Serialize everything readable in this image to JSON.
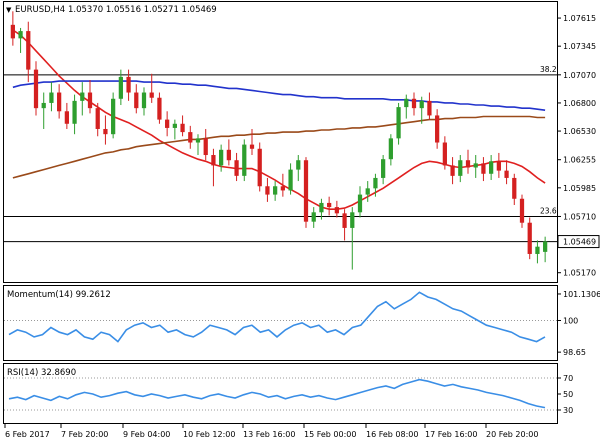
{
  "header": {
    "symbol_timeframe": "EURUSD,H4",
    "ohlc": "1.05370 1.05516 1.05271 1.05469"
  },
  "price_axis": {
    "labels": [
      "1.07615",
      "1.07345",
      "1.07070",
      "1.06800",
      "1.06530",
      "1.06255",
      "1.05985",
      "1.05710",
      "1.05469",
      "1.05170"
    ]
  },
  "fib_levels": [
    {
      "label": "38.2",
      "value": 1.0707
    },
    {
      "label": "23.6",
      "value": 1.0571
    }
  ],
  "current_price": {
    "label": "1.05469",
    "value": 1.05469
  },
  "momentum": {
    "title": "Momentum(14) 99.2612",
    "axis_labels": [
      "101.1306",
      "100",
      "98.65"
    ]
  },
  "rsi": {
    "title": "RSI(14) 32.8690",
    "axis_labels": [
      "70",
      "50",
      "30"
    ]
  },
  "time_axis": {
    "labels": [
      "6 Feb 2017",
      "7 Feb 20:00",
      "9 Feb 04:00",
      "10 Feb 12:00",
      "13 Feb 16:00",
      "15 Feb 00:00",
      "16 Feb 08:00",
      "17 Feb 16:00",
      "20 Feb 20:00"
    ]
  },
  "colors": {
    "bull": "#2e9e2e",
    "bear": "#d42020",
    "sma_fast": "#e02020",
    "sma_slow": "#2233cc",
    "sma_mid": "#9a4a1a",
    "oscillator": "#3a8ee6",
    "level_line": "#000000",
    "dotted": "#999999"
  },
  "chart_data": {
    "type": "candlestick",
    "symbol": "EURUSD",
    "timeframe": "H4",
    "ohlc_last": {
      "open": 1.0537,
      "high": 1.05516,
      "low": 1.05271,
      "close": 1.05469
    },
    "ylim": [
      1.051,
      1.0775
    ],
    "candles": [
      [
        1.0755,
        1.0768,
        1.0735,
        1.0742
      ],
      [
        1.0742,
        1.0752,
        1.0728,
        1.0749
      ],
      [
        1.0749,
        1.0758,
        1.07,
        1.0712
      ],
      [
        1.0712,
        1.072,
        1.0668,
        1.0675
      ],
      [
        1.0675,
        1.069,
        1.0655,
        1.068
      ],
      [
        1.068,
        1.07,
        1.0672,
        1.069
      ],
      [
        1.069,
        1.0698,
        1.0665,
        1.0672
      ],
      [
        1.0672,
        1.068,
        1.0655,
        1.066
      ],
      [
        1.066,
        1.0688,
        1.065,
        1.0682
      ],
      [
        1.0682,
        1.07,
        1.0668,
        1.069
      ],
      [
        1.069,
        1.0702,
        1.067,
        1.0675
      ],
      [
        1.0675,
        1.068,
        1.0648,
        1.0655
      ],
      [
        1.0655,
        1.0668,
        1.064,
        1.065
      ],
      [
        1.065,
        1.069,
        1.0646,
        1.0684
      ],
      [
        1.0684,
        1.0712,
        1.0678,
        1.0705
      ],
      [
        1.0705,
        1.0712,
        1.0682,
        1.069
      ],
      [
        1.069,
        1.0698,
        1.067,
        1.0675
      ],
      [
        1.0675,
        1.0695,
        1.0668,
        1.069
      ],
      [
        1.069,
        1.0708,
        1.068,
        1.0685
      ],
      [
        1.0685,
        1.069,
        1.066,
        1.0664
      ],
      [
        1.0664,
        1.0672,
        1.0648,
        1.0656
      ],
      [
        1.0656,
        1.0664,
        1.0645,
        1.066
      ],
      [
        1.066,
        1.0668,
        1.0648,
        1.0652
      ],
      [
        1.0652,
        1.0658,
        1.0636,
        1.0642
      ],
      [
        1.0642,
        1.065,
        1.063,
        1.0646
      ],
      [
        1.0646,
        1.0655,
        1.0625,
        1.063
      ],
      [
        1.063,
        1.0636,
        1.06,
        1.062
      ],
      [
        1.062,
        1.064,
        1.0614,
        1.0635
      ],
      [
        1.0635,
        1.0645,
        1.062,
        1.0625
      ],
      [
        1.0625,
        1.0632,
        1.0605,
        1.061
      ],
      [
        1.061,
        1.0645,
        1.0605,
        1.064
      ],
      [
        1.064,
        1.0655,
        1.063,
        1.0636
      ],
      [
        1.0636,
        1.0642,
        1.0595,
        1.06
      ],
      [
        1.06,
        1.0608,
        1.0585,
        1.0592
      ],
      [
        1.0592,
        1.0605,
        1.0586,
        1.06
      ],
      [
        1.06,
        1.0612,
        1.059,
        1.0596
      ],
      [
        1.0596,
        1.0622,
        1.0592,
        1.0616
      ],
      [
        1.0616,
        1.063,
        1.0605,
        1.0625
      ],
      [
        1.0625,
        1.0628,
        1.056,
        1.0566
      ],
      [
        1.0566,
        1.058,
        1.056,
        1.0575
      ],
      [
        1.0575,
        1.0588,
        1.0568,
        1.0584
      ],
      [
        1.0584,
        1.059,
        1.0572,
        1.058
      ],
      [
        1.058,
        1.0586,
        1.057,
        1.0574
      ],
      [
        1.0574,
        1.0578,
        1.0548,
        1.056
      ],
      [
        1.056,
        1.058,
        1.052,
        1.0575
      ],
      [
        1.0575,
        1.06,
        1.057,
        1.0592
      ],
      [
        1.0592,
        1.0605,
        1.0585,
        1.0598
      ],
      [
        1.0598,
        1.0612,
        1.059,
        1.0608
      ],
      [
        1.0608,
        1.063,
        1.0602,
        1.0626
      ],
      [
        1.0626,
        1.065,
        1.062,
        1.0646
      ],
      [
        1.0646,
        1.068,
        1.064,
        1.0676
      ],
      [
        1.0676,
        1.0688,
        1.0665,
        1.0684
      ],
      [
        1.0684,
        1.069,
        1.0668,
        1.0675
      ],
      [
        1.0675,
        1.0686,
        1.066,
        1.0682
      ],
      [
        1.0682,
        1.069,
        1.0664,
        1.0668
      ],
      [
        1.0668,
        1.0674,
        1.0636,
        1.0642
      ],
      [
        1.0642,
        1.0648,
        1.0616,
        1.062
      ],
      [
        1.062,
        1.0628,
        1.0602,
        1.061
      ],
      [
        1.061,
        1.063,
        1.0604,
        1.0625
      ],
      [
        1.0625,
        1.0635,
        1.0612,
        1.0618
      ],
      [
        1.0618,
        1.063,
        1.0608,
        1.0622
      ],
      [
        1.0622,
        1.0628,
        1.0605,
        1.0612
      ],
      [
        1.0612,
        1.063,
        1.0606,
        1.0624
      ],
      [
        1.0624,
        1.0632,
        1.0608,
        1.0615
      ],
      [
        1.0615,
        1.0625,
        1.0602,
        1.0608
      ],
      [
        1.0608,
        1.0612,
        1.0582,
        1.0588
      ],
      [
        1.0588,
        1.0592,
        1.056,
        1.0565
      ],
      [
        1.0565,
        1.057,
        1.053,
        1.0535
      ],
      [
        1.0535,
        1.0548,
        1.0526,
        1.0542
      ],
      [
        1.0537,
        1.05516,
        1.05271,
        1.05469
      ]
    ],
    "series": [
      {
        "name": "sma_fast",
        "values": [
          1.075,
          1.0745,
          1.0738,
          1.073,
          1.0722,
          1.0714,
          1.0706,
          1.0699,
          1.0692,
          1.0686,
          1.0681,
          1.0676,
          1.0671,
          1.0667,
          1.0664,
          1.0661,
          1.0657,
          1.0653,
          1.0649,
          1.0644,
          1.064,
          1.0636,
          1.0632,
          1.0629,
          1.0626,
          1.0624,
          1.0621,
          1.0619,
          1.0618,
          1.0617,
          1.0617,
          1.0617,
          1.0614,
          1.061,
          1.0606,
          1.0601,
          1.0597,
          1.0593,
          1.0588,
          1.0584,
          1.058,
          1.0578,
          1.0578,
          1.0579,
          1.0582,
          1.0586,
          1.059,
          1.0594,
          1.0598,
          1.0603,
          1.0608,
          1.0613,
          1.0618,
          1.0622,
          1.0624,
          1.0623,
          1.0621,
          1.0619,
          1.0618,
          1.0619,
          1.062,
          1.0621,
          1.0623,
          1.0624,
          1.0624,
          1.0622,
          1.0619,
          1.0614,
          1.0608,
          1.0603
        ]
      },
      {
        "name": "sma_slow",
        "values": [
          1.0695,
          1.0697,
          1.0698,
          1.0699,
          1.07,
          1.07,
          1.0701,
          1.0701,
          1.0701,
          1.0701,
          1.0701,
          1.0701,
          1.0701,
          1.0701,
          1.0701,
          1.0701,
          1.0701,
          1.07,
          1.07,
          1.07,
          1.0699,
          1.0699,
          1.0698,
          1.0698,
          1.0697,
          1.0697,
          1.0696,
          1.0695,
          1.0694,
          1.0694,
          1.0693,
          1.0692,
          1.0691,
          1.069,
          1.0689,
          1.0688,
          1.0688,
          1.0687,
          1.0686,
          1.0686,
          1.0685,
          1.0685,
          1.0685,
          1.0684,
          1.0684,
          1.0684,
          1.0684,
          1.0684,
          1.0684,
          1.0683,
          1.0683,
          1.0683,
          1.0682,
          1.0682,
          1.0681,
          1.0681,
          1.068,
          1.068,
          1.0679,
          1.0679,
          1.0678,
          1.0678,
          1.0677,
          1.0677,
          1.0676,
          1.0676,
          1.0675,
          1.0675,
          1.0674,
          1.0673
        ]
      },
      {
        "name": "sma_mid",
        "values": [
          1.0608,
          1.061,
          1.0612,
          1.0614,
          1.0616,
          1.0618,
          1.062,
          1.0622,
          1.0624,
          1.0626,
          1.0628,
          1.063,
          1.0632,
          1.0633,
          1.0635,
          1.0636,
          1.0638,
          1.0639,
          1.064,
          1.0641,
          1.0642,
          1.0643,
          1.0644,
          1.0645,
          1.0645,
          1.0646,
          1.0647,
          1.0648,
          1.0648,
          1.0649,
          1.0649,
          1.065,
          1.065,
          1.0651,
          1.0651,
          1.0652,
          1.0652,
          1.0652,
          1.0653,
          1.0653,
          1.0654,
          1.0654,
          1.0655,
          1.0655,
          1.0656,
          1.0656,
          1.0657,
          1.0657,
          1.0658,
          1.0659,
          1.066,
          1.0661,
          1.0662,
          1.0663,
          1.0664,
          1.0664,
          1.0665,
          1.0665,
          1.0666,
          1.0666,
          1.0666,
          1.0667,
          1.0667,
          1.0667,
          1.0667,
          1.0667,
          1.0667,
          1.0667,
          1.0666,
          1.0666
        ]
      }
    ],
    "momentum": {
      "ylim": [
        98.4,
        101.3
      ],
      "values": [
        99.4,
        99.6,
        99.5,
        99.3,
        99.4,
        99.7,
        99.5,
        99.4,
        99.6,
        99.3,
        99.2,
        99.5,
        99.4,
        99.1,
        99.6,
        99.8,
        99.9,
        99.7,
        99.8,
        99.5,
        99.6,
        99.4,
        99.3,
        99.5,
        99.8,
        99.7,
        99.6,
        99.4,
        99.7,
        99.8,
        99.5,
        99.6,
        99.3,
        99.6,
        99.8,
        99.9,
        99.7,
        99.8,
        99.5,
        99.6,
        99.4,
        99.7,
        99.8,
        100.2,
        100.6,
        100.8,
        100.5,
        100.7,
        100.9,
        101.2,
        101.0,
        100.9,
        100.7,
        100.5,
        100.4,
        100.2,
        100.0,
        99.8,
        99.7,
        99.6,
        99.5,
        99.3,
        99.2,
        99.1,
        99.3
      ]
    },
    "rsi": {
      "ylim": [
        15,
        85
      ],
      "values": [
        44,
        46,
        43,
        48,
        45,
        42,
        47,
        44,
        49,
        52,
        50,
        46,
        48,
        51,
        53,
        49,
        47,
        50,
        48,
        45,
        47,
        49,
        46,
        44,
        48,
        50,
        47,
        45,
        49,
        52,
        50,
        46,
        48,
        44,
        47,
        49,
        46,
        48,
        45,
        43,
        46,
        49,
        52,
        55,
        58,
        60,
        57,
        62,
        65,
        68,
        66,
        63,
        60,
        62,
        59,
        57,
        55,
        52,
        50,
        48,
        45,
        42,
        38,
        35,
        33
      ]
    },
    "price_labels": [
      "1.07615",
      "1.07345",
      "1.07070",
      "1.06800",
      "1.06530",
      "1.06255",
      "1.05985",
      "1.05710",
      "1.05469",
      "1.05170"
    ],
    "x_labels": [
      "6 Feb 2017",
      "7 Feb 20:00",
      "9 Feb 04:00",
      "10 Feb 12:00",
      "13 Feb 16:00",
      "15 Feb 00:00",
      "16 Feb 08:00",
      "17 Feb 16:00",
      "20 Feb 20:00"
    ]
  }
}
